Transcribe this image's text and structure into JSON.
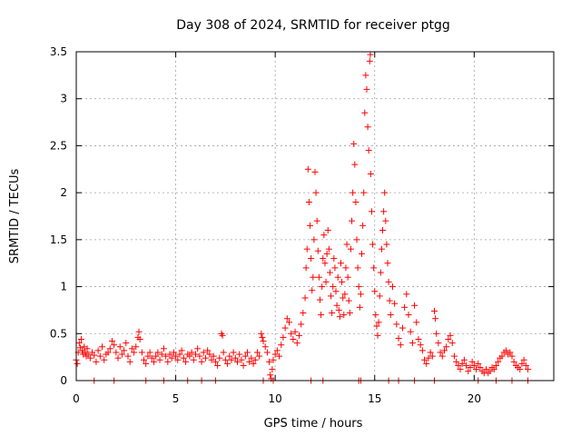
{
  "chart_data": {
    "type": "scatter",
    "title": "Day 308 of 2024, SRMTID for receiver ptgg",
    "xlabel": "GPS time / hours",
    "ylabel": "SRMTID / TECUs",
    "xlim": [
      0,
      24
    ],
    "ylim": [
      0,
      3.5
    ],
    "xticks": [
      0,
      5,
      10,
      15,
      20
    ],
    "xtick_labels": [
      "0",
      "5",
      "10",
      "15",
      "20"
    ],
    "yticks": [
      0,
      0.5,
      1,
      1.5,
      2,
      2.5,
      3,
      3.5
    ],
    "ytick_labels": [
      "0",
      "0.5",
      "1",
      "1.5",
      "2",
      "2.5",
      "3",
      "3.5"
    ],
    "grid": true,
    "marker": "+",
    "series_color": "#ff0000",
    "series": [
      {
        "name": "SRMTID",
        "points": [
          [
            0.0,
            0.22
          ],
          [
            0.05,
            0.18
          ],
          [
            0.1,
            0.3
          ],
          [
            0.15,
            0.4
          ],
          [
            0.2,
            0.35
          ],
          [
            0.25,
            0.44
          ],
          [
            0.3,
            0.32
          ],
          [
            0.35,
            0.28
          ],
          [
            0.4,
            0.36
          ],
          [
            0.45,
            0.3
          ],
          [
            0.5,
            0.26
          ],
          [
            0.55,
            0.34
          ],
          [
            0.6,
            0.28
          ],
          [
            0.7,
            0.24
          ],
          [
            0.8,
            0.3
          ],
          [
            0.9,
            0.27
          ],
          [
            1.0,
            0.2
          ],
          [
            1.1,
            0.32
          ],
          [
            1.2,
            0.26
          ],
          [
            1.3,
            0.36
          ],
          [
            1.4,
            0.22
          ],
          [
            1.5,
            0.28
          ],
          [
            1.6,
            0.3
          ],
          [
            1.7,
            0.34
          ],
          [
            1.8,
            0.42
          ],
          [
            1.9,
            0.38
          ],
          [
            2.0,
            0.3
          ],
          [
            2.1,
            0.24
          ],
          [
            2.2,
            0.36
          ],
          [
            2.3,
            0.28
          ],
          [
            2.4,
            0.32
          ],
          [
            2.5,
            0.4
          ],
          [
            2.6,
            0.26
          ],
          [
            2.7,
            0.2
          ],
          [
            2.8,
            0.34
          ],
          [
            2.9,
            0.3
          ],
          [
            3.0,
            0.36
          ],
          [
            3.1,
            0.46
          ],
          [
            3.15,
            0.52
          ],
          [
            3.2,
            0.44
          ],
          [
            3.3,
            0.3
          ],
          [
            3.4,
            0.22
          ],
          [
            3.5,
            0.18
          ],
          [
            3.6,
            0.26
          ],
          [
            3.7,
            0.3
          ],
          [
            3.8,
            0.24
          ],
          [
            3.9,
            0.2
          ],
          [
            4.0,
            0.26
          ],
          [
            4.1,
            0.3
          ],
          [
            4.2,
            0.22
          ],
          [
            4.3,
            0.28
          ],
          [
            4.4,
            0.34
          ],
          [
            4.5,
            0.26
          ],
          [
            4.6,
            0.2
          ],
          [
            4.7,
            0.28
          ],
          [
            4.8,
            0.24
          ],
          [
            4.9,
            0.3
          ],
          [
            5.0,
            0.26
          ],
          [
            5.1,
            0.22
          ],
          [
            5.2,
            0.28
          ],
          [
            5.3,
            0.32
          ],
          [
            5.4,
            0.24
          ],
          [
            5.5,
            0.2
          ],
          [
            5.6,
            0.28
          ],
          [
            5.7,
            0.26
          ],
          [
            5.8,
            0.3
          ],
          [
            5.9,
            0.22
          ],
          [
            6.0,
            0.28
          ],
          [
            6.1,
            0.34
          ],
          [
            6.2,
            0.26
          ],
          [
            6.3,
            0.2
          ],
          [
            6.4,
            0.3
          ],
          [
            6.5,
            0.24
          ],
          [
            6.6,
            0.32
          ],
          [
            6.7,
            0.28
          ],
          [
            6.8,
            0.22
          ],
          [
            6.9,
            0.26
          ],
          [
            7.0,
            0.2
          ],
          [
            7.1,
            0.16
          ],
          [
            7.2,
            0.24
          ],
          [
            7.3,
            0.5
          ],
          [
            7.35,
            0.48
          ],
          [
            7.4,
            0.3
          ],
          [
            7.5,
            0.22
          ],
          [
            7.6,
            0.18
          ],
          [
            7.7,
            0.26
          ],
          [
            7.8,
            0.22
          ],
          [
            7.9,
            0.3
          ],
          [
            8.0,
            0.24
          ],
          [
            8.1,
            0.2
          ],
          [
            8.2,
            0.28
          ],
          [
            8.3,
            0.22
          ],
          [
            8.4,
            0.16
          ],
          [
            8.5,
            0.26
          ],
          [
            8.6,
            0.3
          ],
          [
            8.7,
            0.2
          ],
          [
            8.8,
            0.24
          ],
          [
            8.9,
            0.18
          ],
          [
            9.0,
            0.22
          ],
          [
            9.1,
            0.3
          ],
          [
            9.2,
            0.26
          ],
          [
            9.3,
            0.5
          ],
          [
            9.35,
            0.46
          ],
          [
            9.4,
            0.42
          ],
          [
            9.5,
            0.36
          ],
          [
            9.6,
            0.3
          ],
          [
            9.7,
            0.2
          ],
          [
            9.75,
            0.06
          ],
          [
            9.8,
            0.02
          ],
          [
            9.85,
            0.12
          ],
          [
            9.9,
            0.22
          ],
          [
            10.0,
            0.28
          ],
          [
            10.1,
            0.32
          ],
          [
            10.2,
            0.26
          ],
          [
            10.3,
            0.38
          ],
          [
            10.4,
            0.46
          ],
          [
            10.5,
            0.56
          ],
          [
            10.6,
            0.66
          ],
          [
            10.7,
            0.62
          ],
          [
            10.8,
            0.5
          ],
          [
            10.9,
            0.44
          ],
          [
            11.0,
            0.52
          ],
          [
            11.1,
            0.4
          ],
          [
            11.2,
            0.48
          ],
          [
            11.3,
            0.6
          ],
          [
            11.4,
            0.72
          ],
          [
            11.5,
            0.88
          ],
          [
            11.55,
            1.2
          ],
          [
            11.6,
            1.4
          ],
          [
            11.65,
            2.25
          ],
          [
            11.7,
            1.9
          ],
          [
            11.75,
            1.65
          ],
          [
            11.8,
            1.3
          ],
          [
            11.85,
            0.96
          ],
          [
            11.9,
            1.1
          ],
          [
            11.95,
            1.5
          ],
          [
            12.0,
            2.22
          ],
          [
            12.05,
            2.0
          ],
          [
            12.1,
            1.7
          ],
          [
            12.15,
            1.38
          ],
          [
            12.2,
            1.1
          ],
          [
            12.25,
            0.86
          ],
          [
            12.3,
            0.7
          ],
          [
            12.35,
            1.0
          ],
          [
            12.4,
            1.3
          ],
          [
            12.45,
            1.55
          ],
          [
            12.5,
            1.25
          ],
          [
            12.55,
            1.05
          ],
          [
            12.6,
            1.35
          ],
          [
            12.65,
            1.6
          ],
          [
            12.7,
            1.4
          ],
          [
            12.75,
            1.15
          ],
          [
            12.8,
            0.9
          ],
          [
            12.85,
            0.72
          ],
          [
            12.9,
            1.0
          ],
          [
            12.95,
            1.3
          ],
          [
            13.0,
            1.2
          ],
          [
            13.05,
            0.95
          ],
          [
            13.1,
            0.8
          ],
          [
            13.15,
            1.1
          ],
          [
            13.2,
            0.75
          ],
          [
            13.25,
            0.68
          ],
          [
            13.3,
            1.25
          ],
          [
            13.35,
            1.05
          ],
          [
            13.4,
            0.88
          ],
          [
            13.45,
            0.7
          ],
          [
            13.5,
            0.92
          ],
          [
            13.55,
            1.2
          ],
          [
            13.6,
            1.45
          ],
          [
            13.65,
            1.1
          ],
          [
            13.7,
            0.85
          ],
          [
            13.75,
            0.72
          ],
          [
            13.8,
            1.4
          ],
          [
            13.85,
            1.7
          ],
          [
            13.9,
            2.0
          ],
          [
            13.95,
            2.52
          ],
          [
            14.0,
            2.3
          ],
          [
            14.05,
            1.9
          ],
          [
            14.1,
            1.5
          ],
          [
            14.15,
            1.2
          ],
          [
            14.2,
            1.0
          ],
          [
            14.25,
            0.78
          ],
          [
            14.3,
            0.92
          ],
          [
            14.35,
            1.35
          ],
          [
            14.4,
            1.65
          ],
          [
            14.45,
            2.0
          ],
          [
            14.5,
            2.85
          ],
          [
            14.55,
            3.25
          ],
          [
            14.6,
            3.1
          ],
          [
            14.65,
            2.7
          ],
          [
            14.7,
            2.45
          ],
          [
            14.75,
            3.4
          ],
          [
            14.78,
            3.47
          ],
          [
            14.8,
            2.2
          ],
          [
            14.85,
            1.8
          ],
          [
            14.9,
            1.45
          ],
          [
            14.95,
            1.2
          ],
          [
            15.0,
            0.95
          ],
          [
            15.05,
            0.7
          ],
          [
            15.1,
            0.58
          ],
          [
            15.15,
            0.48
          ],
          [
            15.2,
            0.62
          ],
          [
            15.25,
            0.9
          ],
          [
            15.3,
            1.15
          ],
          [
            15.35,
            1.4
          ],
          [
            15.4,
            1.6
          ],
          [
            15.45,
            1.8
          ],
          [
            15.5,
            2.0
          ],
          [
            15.55,
            1.7
          ],
          [
            15.6,
            1.45
          ],
          [
            15.65,
            1.25
          ],
          [
            15.7,
            1.05
          ],
          [
            15.75,
            0.85
          ],
          [
            15.8,
            0.7
          ],
          [
            15.9,
            1.0
          ],
          [
            16.0,
            0.82
          ],
          [
            16.1,
            0.6
          ],
          [
            16.2,
            0.45
          ],
          [
            16.3,
            0.38
          ],
          [
            16.4,
            0.56
          ],
          [
            16.5,
            0.78
          ],
          [
            16.6,
            0.92
          ],
          [
            16.7,
            0.7
          ],
          [
            16.8,
            0.52
          ],
          [
            16.9,
            0.4
          ],
          [
            17.0,
            0.8
          ],
          [
            17.1,
            0.62
          ],
          [
            17.2,
            0.44
          ],
          [
            17.3,
            0.38
          ],
          [
            17.4,
            0.32
          ],
          [
            17.5,
            0.22
          ],
          [
            17.6,
            0.18
          ],
          [
            17.7,
            0.24
          ],
          [
            17.8,
            0.3
          ],
          [
            17.9,
            0.26
          ],
          [
            18.0,
            0.74
          ],
          [
            18.05,
            0.66
          ],
          [
            18.1,
            0.5
          ],
          [
            18.2,
            0.4
          ],
          [
            18.3,
            0.3
          ],
          [
            18.4,
            0.26
          ],
          [
            18.5,
            0.32
          ],
          [
            18.6,
            0.36
          ],
          [
            18.7,
            0.44
          ],
          [
            18.8,
            0.48
          ],
          [
            18.9,
            0.4
          ],
          [
            19.0,
            0.26
          ],
          [
            19.1,
            0.2
          ],
          [
            19.2,
            0.16
          ],
          [
            19.3,
            0.12
          ],
          [
            19.4,
            0.18
          ],
          [
            19.5,
            0.22
          ],
          [
            19.6,
            0.16
          ],
          [
            19.7,
            0.1
          ],
          [
            19.8,
            0.14
          ],
          [
            19.9,
            0.2
          ],
          [
            20.0,
            0.16
          ],
          [
            20.1,
            0.12
          ],
          [
            20.2,
            0.18
          ],
          [
            20.3,
            0.14
          ],
          [
            20.4,
            0.1
          ],
          [
            20.5,
            0.08
          ],
          [
            20.6,
            0.12
          ],
          [
            20.7,
            0.08
          ],
          [
            20.8,
            0.1
          ],
          [
            20.9,
            0.14
          ],
          [
            21.0,
            0.12
          ],
          [
            21.1,
            0.16
          ],
          [
            21.2,
            0.2
          ],
          [
            21.3,
            0.24
          ],
          [
            21.4,
            0.26
          ],
          [
            21.5,
            0.3
          ],
          [
            21.6,
            0.32
          ],
          [
            21.7,
            0.28
          ],
          [
            21.8,
            0.3
          ],
          [
            21.9,
            0.26
          ],
          [
            22.0,
            0.2
          ],
          [
            22.1,
            0.16
          ],
          [
            22.2,
            0.14
          ],
          [
            22.3,
            0.12
          ],
          [
            22.4,
            0.18
          ],
          [
            22.5,
            0.22
          ],
          [
            22.6,
            0.16
          ],
          [
            22.7,
            0.12
          ]
        ],
        "baseline_points_x": [
          0.9,
          1.9,
          3.5,
          4.4,
          5.6,
          6.3,
          7.0,
          9.4,
          9.9,
          11.8,
          12.4,
          14.2,
          14.3,
          15.7,
          16.2,
          17.0,
          18.0,
          20.2,
          21.1,
          21.9,
          22.7
        ]
      }
    ]
  }
}
